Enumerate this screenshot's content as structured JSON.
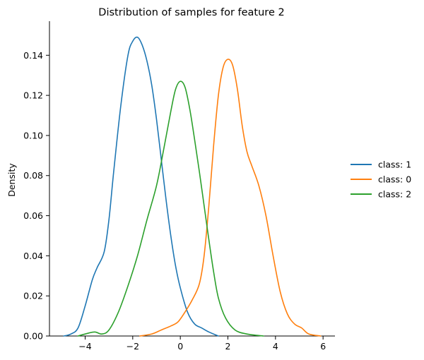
{
  "chart_data": {
    "type": "line",
    "title": "Distribution of samples for feature 2",
    "xlabel": "",
    "ylabel": "Density",
    "xlim": [
      -5.5,
      6.5
    ],
    "ylim": [
      0,
      0.157
    ],
    "x_ticks": [
      -4,
      -2,
      0,
      2,
      4,
      6
    ],
    "x_tick_labels": [
      "−4",
      "−2",
      "0",
      "2",
      "4",
      "6"
    ],
    "y_ticks": [
      0,
      0.02,
      0.04,
      0.06,
      0.08,
      0.1,
      0.12,
      0.14
    ],
    "y_tick_labels": [
      "0.00",
      "0.02",
      "0.04",
      "0.06",
      "0.08",
      "0.10",
      "0.12",
      "0.14"
    ],
    "grid": false,
    "legend_position": "right",
    "series": [
      {
        "name": "class: 1",
        "color": "#1f77b4",
        "points": [
          [
            -4.9,
            0.0
          ],
          [
            -4.6,
            0.001
          ],
          [
            -4.3,
            0.004
          ],
          [
            -4.0,
            0.015
          ],
          [
            -3.7,
            0.028
          ],
          [
            -3.5,
            0.034
          ],
          [
            -3.2,
            0.042
          ],
          [
            -3.0,
            0.058
          ],
          [
            -2.8,
            0.082
          ],
          [
            -2.5,
            0.115
          ],
          [
            -2.2,
            0.14
          ],
          [
            -2.0,
            0.147
          ],
          [
            -1.8,
            0.149
          ],
          [
            -1.6,
            0.145
          ],
          [
            -1.4,
            0.137
          ],
          [
            -1.2,
            0.125
          ],
          [
            -1.0,
            0.108
          ],
          [
            -0.8,
            0.088
          ],
          [
            -0.6,
            0.068
          ],
          [
            -0.4,
            0.05
          ],
          [
            -0.2,
            0.035
          ],
          [
            0.0,
            0.024
          ],
          [
            0.3,
            0.012
          ],
          [
            0.6,
            0.006
          ],
          [
            0.9,
            0.004
          ],
          [
            1.2,
            0.002
          ],
          [
            1.6,
            0.0
          ]
        ]
      },
      {
        "name": "class: 0",
        "color": "#ff7f0e",
        "points": [
          [
            -1.7,
            0.0
          ],
          [
            -1.2,
            0.001
          ],
          [
            -0.8,
            0.003
          ],
          [
            -0.4,
            0.005
          ],
          [
            -0.1,
            0.007
          ],
          [
            0.2,
            0.012
          ],
          [
            0.5,
            0.018
          ],
          [
            0.8,
            0.026
          ],
          [
            1.0,
            0.04
          ],
          [
            1.2,
            0.065
          ],
          [
            1.4,
            0.095
          ],
          [
            1.6,
            0.12
          ],
          [
            1.8,
            0.134
          ],
          [
            2.0,
            0.138
          ],
          [
            2.2,
            0.135
          ],
          [
            2.4,
            0.123
          ],
          [
            2.6,
            0.105
          ],
          [
            2.8,
            0.092
          ],
          [
            3.0,
            0.085
          ],
          [
            3.3,
            0.075
          ],
          [
            3.6,
            0.06
          ],
          [
            3.9,
            0.04
          ],
          [
            4.2,
            0.022
          ],
          [
            4.5,
            0.011
          ],
          [
            4.8,
            0.006
          ],
          [
            5.1,
            0.004
          ],
          [
            5.4,
            0.001
          ],
          [
            5.9,
            0.0
          ]
        ]
      },
      {
        "name": "class: 2",
        "color": "#2ca02c",
        "points": [
          [
            -4.3,
            0.0
          ],
          [
            -4.0,
            0.001
          ],
          [
            -3.6,
            0.002
          ],
          [
            -3.3,
            0.001
          ],
          [
            -3.0,
            0.003
          ],
          [
            -2.6,
            0.012
          ],
          [
            -2.2,
            0.025
          ],
          [
            -1.8,
            0.04
          ],
          [
            -1.4,
            0.058
          ],
          [
            -1.0,
            0.075
          ],
          [
            -0.7,
            0.093
          ],
          [
            -0.4,
            0.112
          ],
          [
            -0.2,
            0.123
          ],
          [
            0.0,
            0.127
          ],
          [
            0.2,
            0.124
          ],
          [
            0.4,
            0.113
          ],
          [
            0.6,
            0.098
          ],
          [
            0.8,
            0.082
          ],
          [
            1.0,
            0.065
          ],
          [
            1.2,
            0.048
          ],
          [
            1.4,
            0.032
          ],
          [
            1.6,
            0.019
          ],
          [
            1.9,
            0.009
          ],
          [
            2.3,
            0.003
          ],
          [
            2.8,
            0.001
          ],
          [
            3.5,
            0.0
          ]
        ]
      }
    ]
  }
}
